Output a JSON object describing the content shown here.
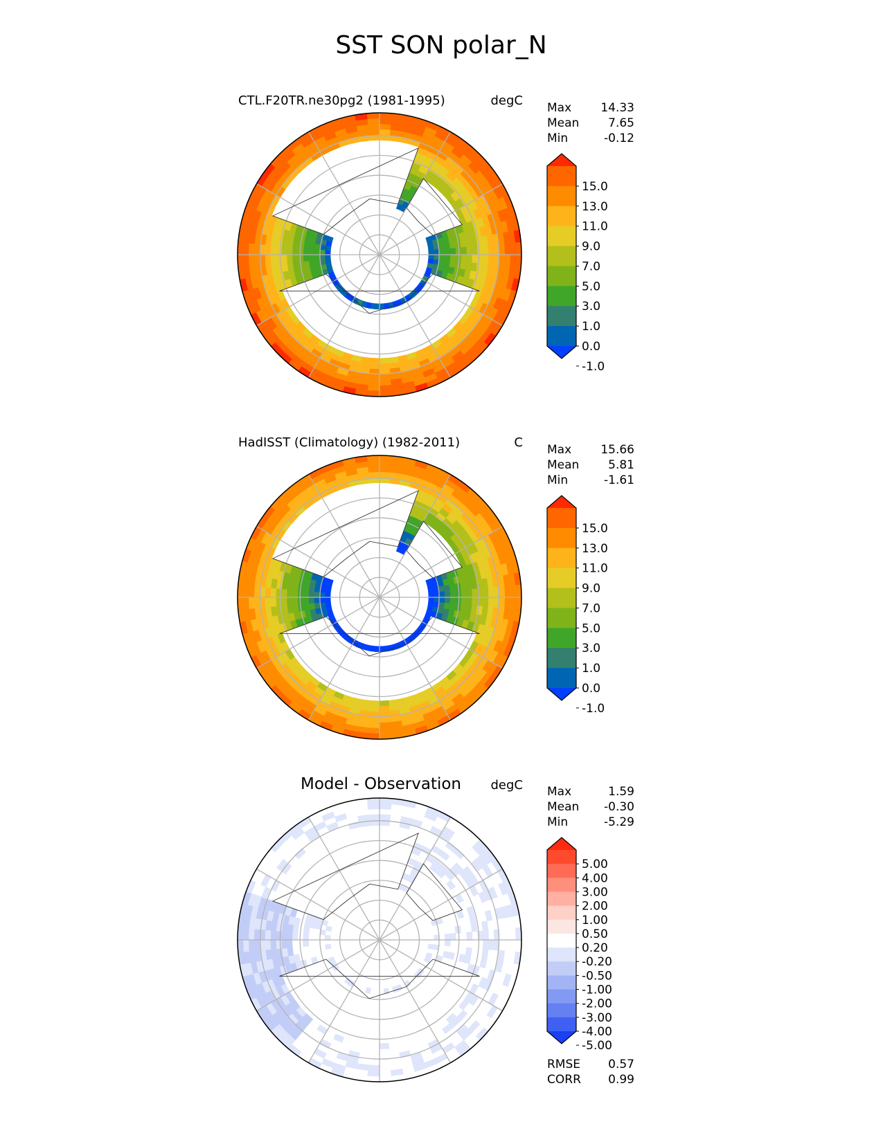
{
  "title": "SST SON polar_N",
  "panels": [
    {
      "id": "test",
      "left_title": "CTL.F20TR.ne30pg2 (1981-1995)",
      "units": "degC",
      "stats": [
        {
          "label": "Max",
          "value": "14.33"
        },
        {
          "label": "Mean",
          "value": "7.65"
        },
        {
          "label": "Min",
          "value": "-0.12"
        }
      ]
    },
    {
      "id": "reference",
      "left_title": "HadISST (Climatology) (1982-2011)",
      "units": "C",
      "stats": [
        {
          "label": "Max",
          "value": "15.66"
        },
        {
          "label": "Mean",
          "value": "5.81"
        },
        {
          "label": "Min",
          "value": "-1.61"
        }
      ]
    },
    {
      "id": "diff",
      "center_title": "Model - Observation",
      "units": "degC",
      "stats": [
        {
          "label": "Max",
          "value": "1.59"
        },
        {
          "label": "Mean",
          "value": "-0.30"
        },
        {
          "label": "Min",
          "value": "-5.29"
        }
      ],
      "extra_stats": [
        {
          "label": "RMSE",
          "value": "0.57"
        },
        {
          "label": "CORR",
          "value": "0.99"
        }
      ]
    }
  ],
  "chart_data": [
    {
      "type": "heatmap",
      "projection": "north-polar-stereographic",
      "variable": "SST",
      "season": "SON",
      "title": "CTL.F20TR.ne30pg2 (1981-1995)",
      "units": "degC",
      "colorbar": {
        "tick_labels": [
          "15.0",
          "13.0",
          "11.0",
          "9.0",
          "7.0",
          "5.0",
          "3.0",
          "1.0",
          "0.0",
          "-1.0"
        ],
        "colors": [
          "#ff2a00",
          "#ff6600",
          "#ff8c00",
          "#ffb31a",
          "#e6cc26",
          "#b3bf1a",
          "#80b31a",
          "#40a62a",
          "#338070",
          "#0066b3",
          "#0040ff"
        ],
        "extend": "both"
      },
      "stats": {
        "max": 14.33,
        "mean": 7.65,
        "min": -0.12
      }
    },
    {
      "type": "heatmap",
      "projection": "north-polar-stereographic",
      "variable": "SST",
      "season": "SON",
      "title": "HadISST (Climatology) (1982-2011)",
      "units": "C",
      "colorbar": {
        "tick_labels": [
          "15.0",
          "13.0",
          "11.0",
          "9.0",
          "7.0",
          "5.0",
          "3.0",
          "1.0",
          "0.0",
          "-1.0"
        ],
        "colors": [
          "#ff2a00",
          "#ff6600",
          "#ff8c00",
          "#ffb31a",
          "#e6cc26",
          "#b3bf1a",
          "#80b31a",
          "#40a62a",
          "#338070",
          "#0066b3",
          "#0040ff"
        ],
        "extend": "both"
      },
      "stats": {
        "max": 15.66,
        "mean": 5.81,
        "min": -1.61
      }
    },
    {
      "type": "heatmap",
      "projection": "north-polar-stereographic",
      "variable": "SST difference",
      "season": "SON",
      "title": "Model - Observation",
      "units": "degC",
      "colorbar": {
        "tick_labels": [
          "5.00",
          "4.00",
          "3.00",
          "2.00",
          "1.00",
          "0.50",
          "0.20",
          "-0.20",
          "-0.50",
          "-1.00",
          "-2.00",
          "-3.00",
          "-4.00",
          "-5.00"
        ],
        "colors": [
          "#ff2a0f",
          "#ff4a2e",
          "#ff6b55",
          "#ff8f7d",
          "#ffb0a2",
          "#ffd0c6",
          "#fbe6e2",
          "#ffffff",
          "#dfe5fa",
          "#c2cdf7",
          "#a3b4f5",
          "#839af2",
          "#6580f1",
          "#3f60f2",
          "#1a40f5"
        ],
        "extend": "both"
      },
      "stats": {
        "max": 1.59,
        "mean": -0.3,
        "min": -5.29,
        "rmse": 0.57,
        "corr": 0.99
      }
    }
  ]
}
